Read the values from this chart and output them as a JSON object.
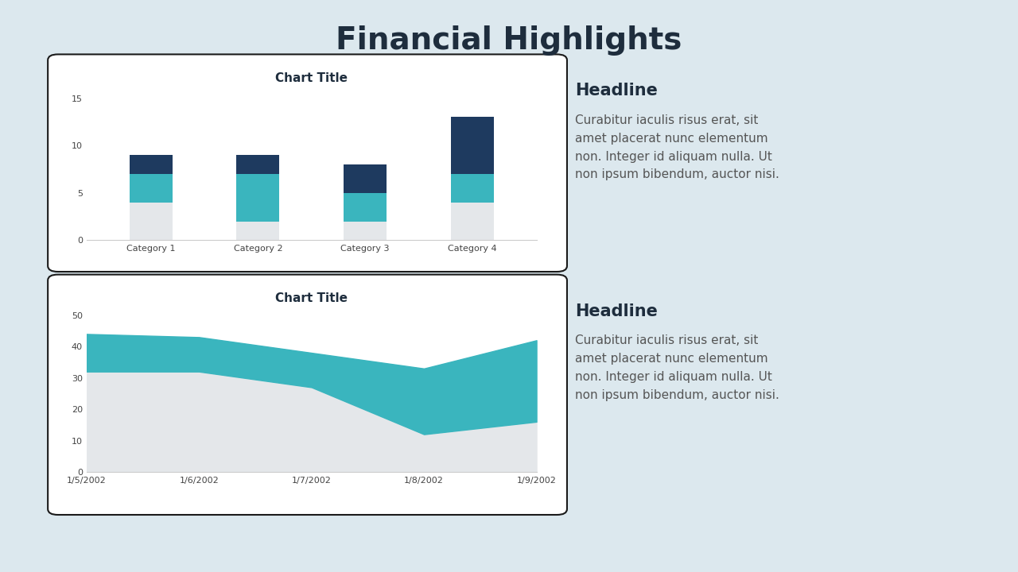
{
  "bg_color": "#dce8ee",
  "title": "Financial Highlights",
  "title_color": "#1e2d3d",
  "title_fontsize": 28,
  "bar_categories": [
    "Category 1",
    "Category 2",
    "Category 3",
    "Category 4"
  ],
  "bar_series1": [
    4,
    2,
    2,
    4
  ],
  "bar_series2": [
    3,
    5,
    3,
    3
  ],
  "bar_series3": [
    2,
    2,
    3,
    6
  ],
  "bar_color1": "#e4e7ea",
  "bar_color2": "#3ab5be",
  "bar_color3": "#1e3a5f",
  "bar_chart_title": "Chart Title",
  "bar_ylim": [
    0,
    16
  ],
  "bar_yticks": [
    0,
    5,
    10,
    15
  ],
  "line_dates": [
    "1/5/2002",
    "1/6/2002",
    "1/7/2002",
    "1/8/2002",
    "1/9/2002"
  ],
  "line_upper": [
    44,
    43,
    38,
    33,
    42
  ],
  "line_lower": [
    32,
    32,
    27,
    12,
    16
  ],
  "line_color_area": "#3ab5be",
  "line_color_bg": "#e4e7ea",
  "line_chart_title": "Chart Title",
  "line_ylim": [
    0,
    52
  ],
  "line_yticks": [
    0,
    10,
    20,
    30,
    40,
    50
  ],
  "headline1": "Headline",
  "body1": "Curabitur iaculis risus erat, sit\namet placerat nunc elementum\nnon. Integer id aliquam nulla. Ut\nnon ipsum bibendum, auctor nisi.",
  "headline2": "Headline",
  "body2": "Curabitur iaculis risus erat, sit\namet placerat nunc elementum\nnon. Integer id aliquam nulla. Ut\nnon ipsum bibendum, auctor nisi.",
  "card_bg": "#ffffff",
  "text_color_dark": "#1e2d3d",
  "text_color_body": "#555555",
  "headline_fontsize": 15,
  "body_fontsize": 11,
  "chart_title_fontsize": 11
}
